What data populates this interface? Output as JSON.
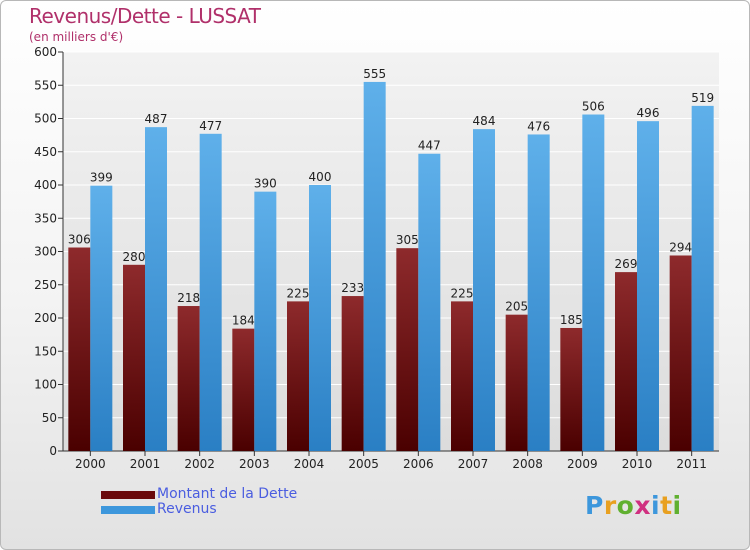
{
  "header": {
    "title": "Revenus/Dette - LUSSAT",
    "subtitle": "(en milliers d'€)"
  },
  "colors": {
    "debt": "#7a1416",
    "revenue": "#3d97dc",
    "grid": "#ffffff",
    "tick_text": "#222222"
  },
  "chart_data": {
    "type": "bar",
    "title": "Revenus/Dette - LUSSAT",
    "ylabel": "(en milliers d'€)",
    "xlabel": "",
    "categories": [
      "2000",
      "2001",
      "2002",
      "2003",
      "2004",
      "2005",
      "2006",
      "2007",
      "2008",
      "2009",
      "2010",
      "2011"
    ],
    "series": [
      {
        "name": "Montant de la Dette",
        "values": [
          306,
          280,
          218,
          184,
          225,
          233,
          305,
          225,
          205,
          185,
          269,
          294
        ]
      },
      {
        "name": "Revenus",
        "values": [
          399,
          487,
          477,
          390,
          400,
          555,
          447,
          484,
          476,
          506,
          496,
          519
        ]
      }
    ],
    "ylim": [
      0,
      600
    ],
    "yticks": [
      0,
      50,
      100,
      150,
      200,
      250,
      300,
      350,
      400,
      450,
      500,
      550,
      600
    ],
    "grid": true,
    "legend_position": "bottom-left"
  },
  "legend": {
    "items": [
      "Montant de la Dette",
      "Revenus"
    ]
  },
  "logo": {
    "letters": [
      "P",
      "r",
      "o",
      "x",
      "i",
      "t",
      "i"
    ],
    "colors": [
      "#3d97dc",
      "#e8a020",
      "#60b030",
      "#d03080",
      "#3d97dc",
      "#e8a020",
      "#60b030"
    ]
  }
}
